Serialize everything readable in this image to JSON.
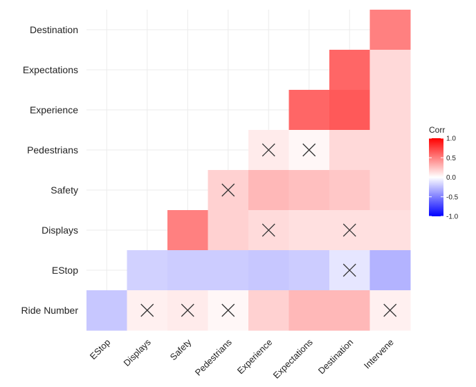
{
  "chart_data": {
    "type": "heatmap",
    "title": "",
    "xlabel": "",
    "ylabel": "",
    "x_categories": [
      "EStop",
      "Displays",
      "Safety",
      "Pedestrians",
      "Experience",
      "Expectations",
      "Destination",
      "Intervene"
    ],
    "y_categories": [
      "Destination",
      "Expectations",
      "Experience",
      "Pedestrians",
      "Safety",
      "Displays",
      "EStop",
      "Ride Number"
    ],
    "cells": [
      {
        "row": "Destination",
        "col": "Intervene",
        "value": 0.5,
        "insignificant": false
      },
      {
        "row": "Expectations",
        "col": "Destination",
        "value": 0.6,
        "insignificant": false
      },
      {
        "row": "Expectations",
        "col": "Intervene",
        "value": 0.15,
        "insignificant": false
      },
      {
        "row": "Experience",
        "col": "Expectations",
        "value": 0.6,
        "insignificant": false
      },
      {
        "row": "Experience",
        "col": "Destination",
        "value": 0.65,
        "insignificant": false
      },
      {
        "row": "Experience",
        "col": "Intervene",
        "value": 0.15,
        "insignificant": false
      },
      {
        "row": "Pedestrians",
        "col": "Experience",
        "value": 0.08,
        "insignificant": true
      },
      {
        "row": "Pedestrians",
        "col": "Expectations",
        "value": 0.03,
        "insignificant": true
      },
      {
        "row": "Pedestrians",
        "col": "Destination",
        "value": 0.15,
        "insignificant": false
      },
      {
        "row": "Pedestrians",
        "col": "Intervene",
        "value": 0.15,
        "insignificant": false
      },
      {
        "row": "Safety",
        "col": "Pedestrians",
        "value": 0.18,
        "insignificant": true
      },
      {
        "row": "Safety",
        "col": "Experience",
        "value": 0.28,
        "insignificant": false
      },
      {
        "row": "Safety",
        "col": "Expectations",
        "value": 0.25,
        "insignificant": false
      },
      {
        "row": "Safety",
        "col": "Destination",
        "value": 0.22,
        "insignificant": false
      },
      {
        "row": "Safety",
        "col": "Intervene",
        "value": 0.15,
        "insignificant": false
      },
      {
        "row": "Displays",
        "col": "Safety",
        "value": 0.5,
        "insignificant": false
      },
      {
        "row": "Displays",
        "col": "Pedestrians",
        "value": 0.18,
        "insignificant": false
      },
      {
        "row": "Displays",
        "col": "Experience",
        "value": 0.14,
        "insignificant": true
      },
      {
        "row": "Displays",
        "col": "Expectations",
        "value": 0.12,
        "insignificant": false
      },
      {
        "row": "Displays",
        "col": "Destination",
        "value": 0.12,
        "insignificant": true
      },
      {
        "row": "Displays",
        "col": "Intervene",
        "value": 0.12,
        "insignificant": false
      },
      {
        "row": "EStop",
        "col": "Displays",
        "value": -0.18,
        "insignificant": false
      },
      {
        "row": "EStop",
        "col": "Safety",
        "value": -0.2,
        "insignificant": false
      },
      {
        "row": "EStop",
        "col": "Pedestrians",
        "value": -0.2,
        "insignificant": false
      },
      {
        "row": "EStop",
        "col": "Experience",
        "value": -0.22,
        "insignificant": false
      },
      {
        "row": "EStop",
        "col": "Expectations",
        "value": -0.2,
        "insignificant": false
      },
      {
        "row": "EStop",
        "col": "Destination",
        "value": -0.1,
        "insignificant": true
      },
      {
        "row": "EStop",
        "col": "Intervene",
        "value": -0.3,
        "insignificant": false
      },
      {
        "row": "Ride Number",
        "col": "EStop",
        "value": -0.22,
        "insignificant": false
      },
      {
        "row": "Ride Number",
        "col": "Displays",
        "value": 0.06,
        "insignificant": true
      },
      {
        "row": "Ride Number",
        "col": "Safety",
        "value": 0.08,
        "insignificant": true
      },
      {
        "row": "Ride Number",
        "col": "Pedestrians",
        "value": 0.03,
        "insignificant": true
      },
      {
        "row": "Ride Number",
        "col": "Experience",
        "value": 0.18,
        "insignificant": false
      },
      {
        "row": "Ride Number",
        "col": "Expectations",
        "value": 0.28,
        "insignificant": false
      },
      {
        "row": "Ride Number",
        "col": "Destination",
        "value": 0.28,
        "insignificant": false
      },
      {
        "row": "Ride Number",
        "col": "Intervene",
        "value": 0.06,
        "insignificant": true
      }
    ],
    "color_scale": {
      "low": "#0000ff",
      "mid": "#ffffff",
      "high": "#ff0000",
      "min": -1.0,
      "max": 1.0
    },
    "legend": {
      "title": "Corr",
      "placement": "right",
      "ticks": [
        "1.0",
        "0.5",
        "0.0",
        "-0.5",
        "-1.0"
      ],
      "tick_values": [
        1.0,
        0.5,
        0.0,
        -0.5,
        -1.0
      ]
    },
    "grid": true
  }
}
